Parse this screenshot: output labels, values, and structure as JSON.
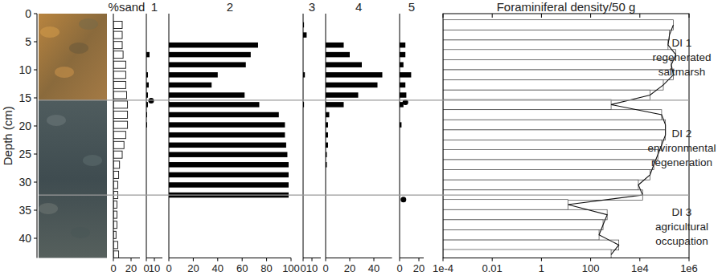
{
  "chart_data": [
    {
      "type": "bar",
      "orientation": "horizontal",
      "title": "%sand",
      "y_label": "Depth (cm)",
      "y": [
        2,
        3.8,
        5.6,
        7.3,
        9.1,
        10.9,
        12.7,
        14.5,
        16.2,
        18,
        19.8,
        21.6,
        23.4,
        25.1,
        26.9,
        28.7,
        30.5,
        32.3,
        34,
        35.8,
        37.6,
        39.4,
        41.2,
        42.9
      ],
      "values": [
        10,
        10,
        10,
        11,
        14,
        14,
        14,
        15,
        16,
        16,
        16,
        14,
        12,
        10,
        7,
        6,
        5,
        5,
        4,
        4,
        4,
        3,
        5,
        6
      ],
      "color": "#ffffff",
      "xlim": [
        0,
        30
      ],
      "xticks": [
        0,
        20
      ],
      "ylim": [
        0,
        43.5
      ],
      "yticks": [
        0,
        5,
        10,
        15,
        20,
        25,
        30,
        35,
        40
      ]
    },
    {
      "type": "bar",
      "orientation": "horizontal",
      "title": "1",
      "tick_labels": "x",
      "y": [
        2,
        3.8,
        5.6,
        7.3,
        9.1,
        10.9,
        12.7,
        14.5,
        16.2,
        18,
        19.8,
        21.6,
        23.4,
        25.1,
        26.9,
        28.7,
        30.5,
        32.3,
        34,
        35.8,
        37.6,
        39.4,
        41.2,
        42.9
      ],
      "values": [
        null,
        null,
        null,
        4,
        null,
        2,
        3,
        2,
        2,
        1,
        1,
        null,
        null,
        null,
        null,
        null,
        null,
        null,
        null,
        null,
        null,
        null,
        null,
        null
      ],
      "dots": {
        "y": [
          15.5
        ],
        "values": [
          6
        ]
      },
      "marker": "circle",
      "color": "#000000",
      "xlim": [
        0,
        20
      ],
      "xticks": [
        0,
        10
      ],
      "ylim": [
        0,
        43.5
      ]
    },
    {
      "type": "bar",
      "orientation": "horizontal",
      "title": "2",
      "tick_labels": "x",
      "y": [
        2,
        3.8,
        5.6,
        7.3,
        9.1,
        10.9,
        12.7,
        14.5,
        16.2,
        18,
        19.8,
        21.6,
        23.4,
        25.1,
        26.9,
        28.7,
        30.5,
        32.3,
        34,
        35.8,
        37.6,
        39.4,
        41.2,
        42.9
      ],
      "values": [
        null,
        null,
        73,
        67,
        63,
        40,
        35,
        62,
        74,
        90,
        95,
        95,
        96,
        97,
        98,
        98,
        98,
        98,
        null,
        null,
        null,
        null,
        null,
        null
      ],
      "color": "#000000",
      "xlim": [
        0,
        100
      ],
      "xticks": [
        0,
        20,
        40,
        60,
        80,
        100
      ],
      "ylim": [
        0,
        43.5
      ]
    },
    {
      "type": "bar",
      "orientation": "horizontal",
      "title": "3",
      "tick_labels": "x",
      "y": [
        2,
        3.8,
        5.6,
        7.3,
        9.1,
        10.9,
        12.7,
        14.5,
        16.2,
        18,
        19.8,
        21.6,
        23.4,
        25.1,
        26.9,
        28.7,
        30.5,
        32.3,
        34,
        35.8,
        37.6,
        39.4,
        41.2,
        42.9
      ],
      "values": [
        1,
        4,
        null,
        null,
        null,
        2,
        null,
        null,
        1,
        null,
        null,
        null,
        null,
        null,
        null,
        null,
        null,
        null,
        null,
        null,
        null,
        null,
        null,
        null
      ],
      "color": "#000000",
      "xlim": [
        0,
        20
      ],
      "xticks": [
        0,
        10
      ],
      "ylim": [
        0,
        43.5
      ]
    },
    {
      "type": "bar",
      "orientation": "horizontal",
      "title": "4",
      "tick_labels": "x",
      "y": [
        2,
        3.8,
        5.6,
        7.3,
        9.1,
        10.9,
        12.7,
        14.5,
        16.2,
        18,
        19.8,
        21.6,
        23.4,
        25.1,
        26.9,
        28.7,
        30.5,
        32.3,
        34,
        35.8,
        37.6,
        39.4,
        41.2,
        42.9
      ],
      "values": [
        null,
        null,
        15,
        20,
        30,
        47,
        43,
        27,
        15,
        3,
        2,
        2,
        2,
        1,
        1,
        null,
        null,
        null,
        null,
        null,
        null,
        null,
        null,
        null
      ],
      "color": "#000000",
      "xlim": [
        0,
        55
      ],
      "xticks": [
        0,
        20,
        40
      ],
      "ylim": [
        0,
        43.5
      ]
    },
    {
      "type": "bar",
      "orientation": "horizontal",
      "title": "5",
      "tick_labels": "x",
      "y": [
        2,
        3.8,
        5.6,
        7.3,
        9.1,
        10.9,
        12.7,
        14.5,
        16.2,
        18,
        19.8,
        21.6,
        23.4,
        25.1,
        26.9,
        28.7,
        30.5,
        32.3,
        34,
        35.8,
        37.6,
        39.4,
        41.2,
        42.9
      ],
      "values": [
        null,
        null,
        6,
        6,
        4,
        12,
        6,
        7,
        4,
        null,
        2,
        null,
        null,
        null,
        null,
        null,
        null,
        null,
        null,
        null,
        null,
        null,
        null,
        null
      ],
      "dots": {
        "y": [
          15.8,
          33.1
        ],
        "values": [
          6,
          4
        ]
      },
      "marker": "circle",
      "color": "#000000",
      "xlim": [
        0,
        25
      ],
      "xticks": [
        0,
        20
      ],
      "ylim": [
        0,
        43.5
      ]
    },
    {
      "type": "area",
      "orientation": "horizontal",
      "title": "Foraminiferal density/50 g",
      "tick_labels": "x",
      "log": "x",
      "y": [
        2,
        3.8,
        5.6,
        7.3,
        9.1,
        10.9,
        12.7,
        14.5,
        16.2,
        18,
        19.8,
        21.6,
        23.4,
        25.1,
        26.9,
        28.7,
        30.5,
        32.3,
        34,
        35.8,
        37.6,
        39.4,
        41.2,
        42.9
      ],
      "values": [
        230000,
        160000,
        140000,
        290000,
        190000,
        230000,
        90000,
        26000,
        680,
        77000,
        110000,
        110000,
        77000,
        54000,
        37000,
        26000,
        8700,
        13000,
        12,
        470,
        320,
        220,
        1400,
        680
      ],
      "color": "#ffffff",
      "xlim": [
        0.0001,
        1000000
      ],
      "xticks": [
        {
          "value": 0.0001,
          "label": "1e-4"
        },
        0.01,
        1,
        100,
        {
          "value": 10000,
          "label": "1e4"
        },
        {
          "value": 1000000,
          "label": "1e6"
        }
      ],
      "ylim": [
        0,
        43.5
      ],
      "boundaries": [
        15.4,
        32.3
      ],
      "annotations": [
        {
          "lines": [
            "DI 1",
            "regenerated",
            "saltmarsh"
          ]
        },
        {
          "lines": [
            "DI 2",
            "environmental",
            "regeneration"
          ]
        },
        {
          "lines": [
            "DI 3",
            "agricultural",
            "occupation"
          ]
        }
      ]
    }
  ]
}
